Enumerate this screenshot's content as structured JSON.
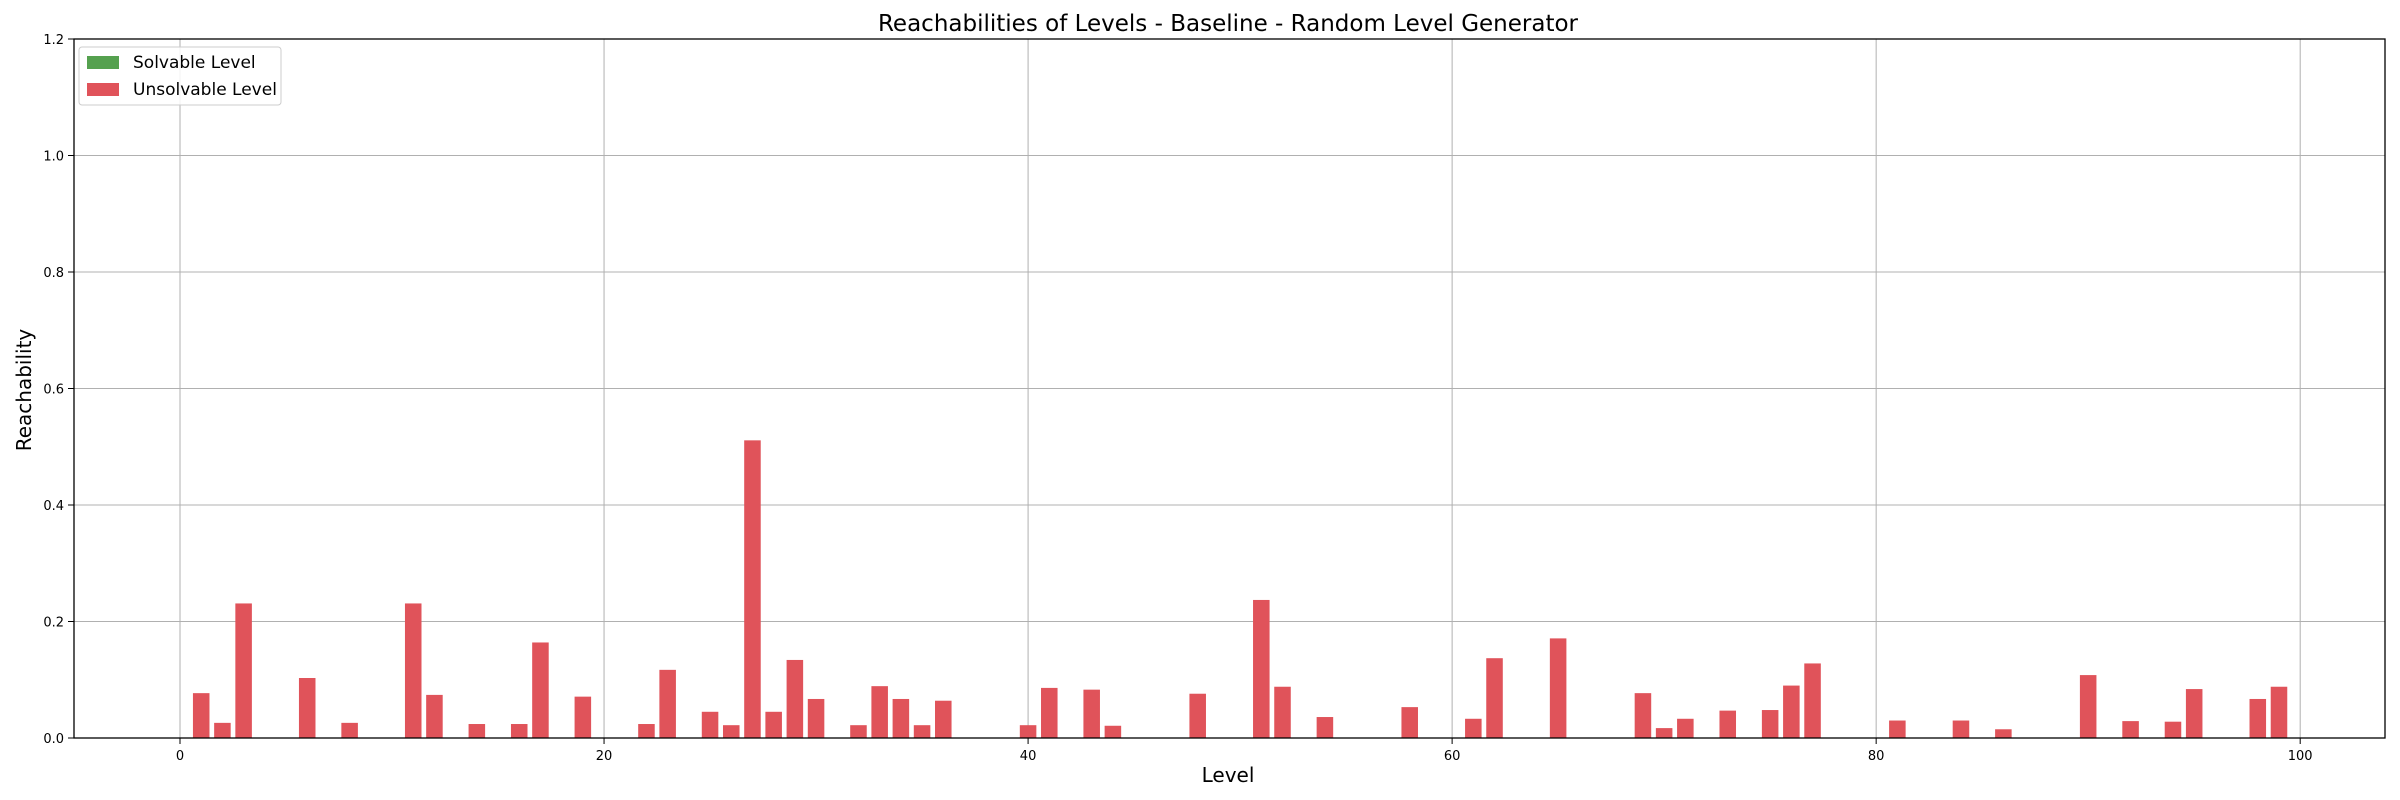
{
  "chart_data": {
    "type": "bar",
    "title": "Reachabilities of Levels - Baseline - Random Level Generator",
    "xlabel": "Level",
    "ylabel": "Reachability",
    "xlim": [
      -5,
      104
    ],
    "ylim": [
      0,
      1.2
    ],
    "xticks": [
      0,
      20,
      40,
      60,
      80,
      100
    ],
    "yticks": [
      0.0,
      0.2,
      0.4,
      0.6,
      0.8,
      1.0,
      1.2
    ],
    "xtick_labels": [
      "0",
      "20",
      "40",
      "60",
      "80",
      "100"
    ],
    "ytick_labels": [
      "0.0",
      "0.2",
      "0.4",
      "0.6",
      "0.8",
      "1.0",
      "1.2"
    ],
    "grid": true,
    "legend_position": "top-left",
    "legend": [
      {
        "label": "Solvable Level",
        "color": "#55a14f"
      },
      {
        "label": "Unsolvable Level",
        "color": "#e0535a"
      }
    ],
    "series": [
      {
        "name": "Unsolvable Level",
        "color": "#e0535a",
        "x": [
          1,
          2,
          3,
          6,
          8,
          11,
          12,
          14,
          16,
          17,
          19,
          22,
          23,
          25,
          26,
          27,
          28,
          29,
          30,
          32,
          33,
          34,
          35,
          36,
          40,
          41,
          43,
          44,
          48,
          51,
          52,
          54,
          58,
          61,
          62,
          65,
          69,
          70,
          71,
          73,
          75,
          76,
          77,
          81,
          84,
          86,
          90,
          92,
          94,
          95,
          98,
          99
        ],
        "values": [
          0.077,
          0.026,
          0.231,
          0.103,
          0.026,
          0.231,
          0.074,
          0.024,
          0.024,
          0.164,
          0.071,
          0.024,
          0.117,
          0.045,
          0.022,
          0.511,
          0.045,
          0.134,
          0.067,
          0.022,
          0.089,
          0.067,
          0.022,
          0.064,
          0.022,
          0.086,
          0.083,
          0.021,
          0.076,
          0.237,
          0.088,
          0.036,
          0.053,
          0.033,
          0.137,
          0.171,
          0.077,
          0.017,
          0.033,
          0.047,
          0.048,
          0.09,
          0.128,
          0.03,
          0.03,
          0.015,
          0.108,
          0.029,
          0.028,
          0.084,
          0.067,
          0.088
        ]
      },
      {
        "name": "Solvable Level",
        "color": "#55a14f",
        "x": [],
        "values": []
      }
    ]
  }
}
